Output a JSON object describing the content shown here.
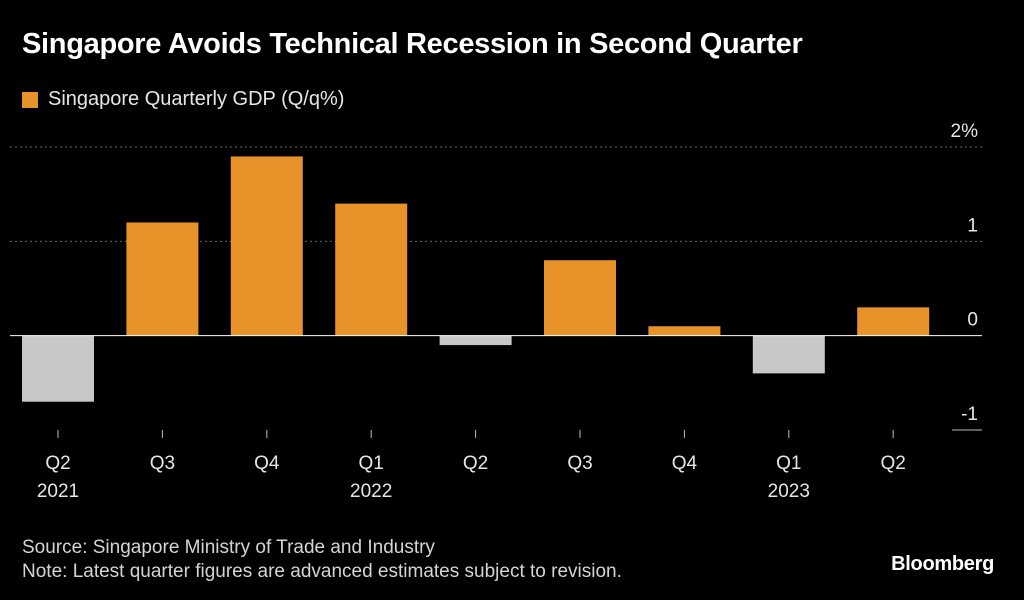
{
  "header": {
    "title": "Singapore Avoids Technical Recession in Second Quarter"
  },
  "chart_data": {
    "type": "bar",
    "title": "Singapore Avoids Technical Recession in Second Quarter",
    "categories": [
      "Q2",
      "Q3",
      "Q4",
      "Q1",
      "Q2",
      "Q3",
      "Q4",
      "Q1",
      "Q2"
    ],
    "year_labels": [
      "2021",
      "",
      "",
      "2022",
      "",
      "",
      "",
      "2023",
      ""
    ],
    "series": [
      {
        "name": "Singapore Quarterly GDP (Q/q%)",
        "values": [
          -0.7,
          1.2,
          1.9,
          1.4,
          -0.1,
          0.8,
          0.1,
          -0.4,
          0.3
        ]
      }
    ],
    "ylim": [
      -1,
      2
    ],
    "yticks": [
      2,
      1,
      0,
      -1
    ],
    "ytick_labels": [
      "2%",
      "1",
      "0",
      "-1"
    ],
    "grid": true,
    "legend": "top-left",
    "colors": {
      "positive": "#e8922a",
      "negative": "#c8c8c8",
      "gridline": "#6a6a6a",
      "axis": "#ffffff"
    }
  },
  "footer": {
    "source": "Source: Singapore Ministry of Trade and Industry",
    "note": "Note: Latest quarter figures are advanced estimates subject to revision."
  },
  "brand": {
    "name": "Bloomberg"
  }
}
